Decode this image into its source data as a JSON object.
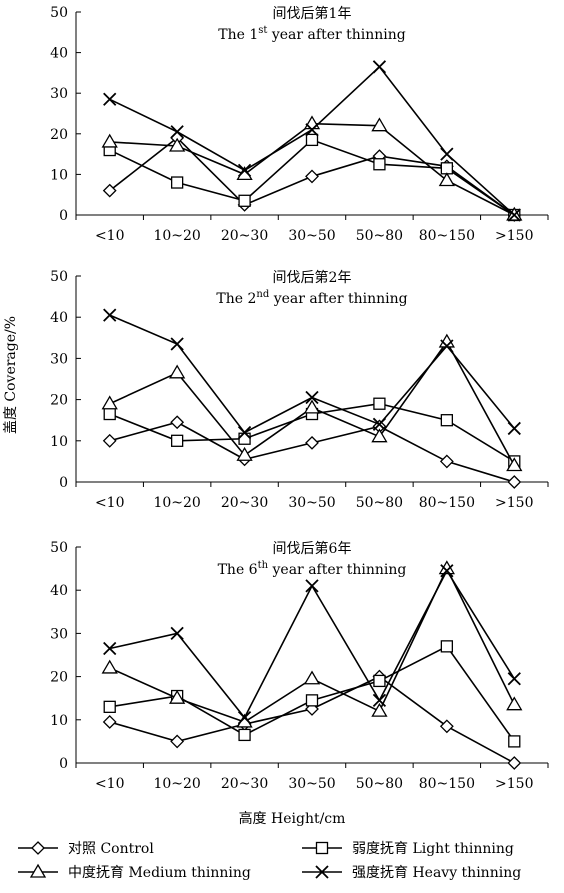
{
  "figure": {
    "ylabel": "盖度 Coverage/%",
    "xlabel": "高度 Height/cm"
  },
  "legend": [
    {
      "marker": "diamond",
      "label": "对照 Control"
    },
    {
      "marker": "square",
      "label": "弱度抚育 Light thinning"
    },
    {
      "marker": "triangle",
      "label": "中度抚育 Medium thinning"
    },
    {
      "marker": "cross",
      "label": "强度抚育 Heavy thinning"
    }
  ],
  "chart_data": [
    {
      "type": "line",
      "title_cn": "间伐后第1年",
      "title_en_pre": "The 1",
      "title_en_sup": "st",
      "title_en_post": " year after thinning",
      "categories": [
        "<10",
        "10~20",
        "20~30",
        "30~50",
        "50~80",
        "80~150",
        ">150"
      ],
      "ylim": [
        0,
        50
      ],
      "yticks": [
        "0",
        "10",
        "20",
        "30",
        "40",
        "50"
      ],
      "series": [
        {
          "name": "对照 Control",
          "marker": "diamond",
          "values": [
            6,
            19,
            2.5,
            9.5,
            14.5,
            12,
            0
          ]
        },
        {
          "name": "弱度抚育 Light thinning",
          "marker": "square",
          "values": [
            16,
            8,
            3.5,
            18.5,
            12.5,
            11.5,
            0
          ]
        },
        {
          "name": "中度抚育 Medium thinning",
          "marker": "triangle",
          "values": [
            18,
            17,
            10,
            22.5,
            22,
            8.5,
            0
          ]
        },
        {
          "name": "强度抚育 Heavy thinning",
          "marker": "cross",
          "values": [
            28.5,
            20.5,
            11,
            21,
            36.5,
            15,
            0
          ]
        }
      ]
    },
    {
      "type": "line",
      "title_cn": "间伐后第2年",
      "title_en_pre": "The 2",
      "title_en_sup": "nd",
      "title_en_post": " year after thinning",
      "categories": [
        "<10",
        "10~20",
        "20~30",
        "30~50",
        "50~80",
        "80~150",
        ">150"
      ],
      "ylim": [
        0,
        50
      ],
      "yticks": [
        "0",
        "10",
        "20",
        "30",
        "40",
        "50"
      ],
      "series": [
        {
          "name": "对照 Control",
          "marker": "diamond",
          "values": [
            10,
            14.5,
            5.5,
            9.5,
            13.5,
            5,
            0
          ]
        },
        {
          "name": "弱度抚育 Light thinning",
          "marker": "square",
          "values": [
            16.5,
            10,
            10.5,
            16.5,
            19,
            15,
            5
          ]
        },
        {
          "name": "中度抚育 Medium thinning",
          "marker": "triangle",
          "values": [
            19,
            26.5,
            6.5,
            18,
            11,
            34,
            4
          ]
        },
        {
          "name": "强度抚育 Heavy thinning",
          "marker": "cross",
          "values": [
            40.5,
            33.5,
            12,
            20.5,
            14,
            33,
            13
          ]
        }
      ]
    },
    {
      "type": "line",
      "title_cn": "间伐后第6年",
      "title_en_pre": "The 6",
      "title_en_sup": "th",
      "title_en_post": " year after thinning",
      "categories": [
        "<10",
        "10~20",
        "20~30",
        "30~50",
        "50~80",
        "80~150",
        ">150"
      ],
      "ylim": [
        0,
        50
      ],
      "yticks": [
        "0",
        "10",
        "20",
        "30",
        "40",
        "50"
      ],
      "series": [
        {
          "name": "对照 Control",
          "marker": "diamond",
          "values": [
            9.5,
            5,
            9,
            12.5,
            20,
            8.5,
            0
          ]
        },
        {
          "name": "弱度抚育 Light thinning",
          "marker": "square",
          "values": [
            13,
            15.5,
            6.5,
            14.5,
            19,
            27,
            5
          ]
        },
        {
          "name": "中度抚育 Medium thinning",
          "marker": "triangle",
          "values": [
            22,
            15,
            9.5,
            19.5,
            12,
            45,
            13.5
          ]
        },
        {
          "name": "强度抚育 Heavy thinning",
          "marker": "cross",
          "values": [
            26.5,
            30,
            10.5,
            41,
            14.5,
            44.5,
            19.5
          ]
        }
      ]
    }
  ]
}
